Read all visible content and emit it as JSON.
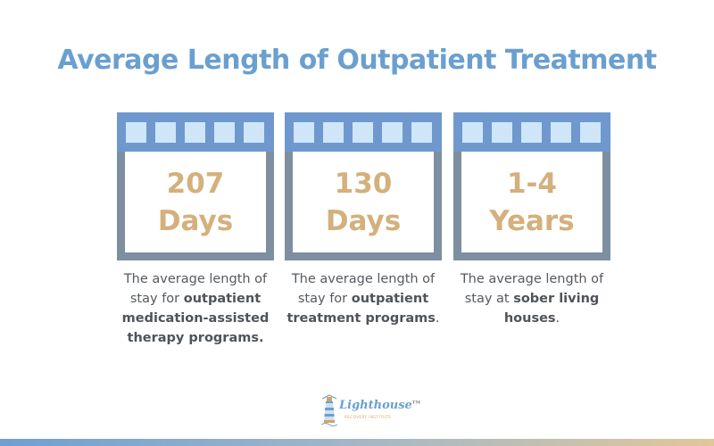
{
  "title": "Average Length of Outpatient Treatment",
  "cards": [
    {
      "line1": "207",
      "line2": "Days",
      "desc_plain_1": "The average length of stay for ",
      "desc_bold": "outpatient medication-assisted therapy programs.",
      "desc_plain_2": ""
    },
    {
      "line1": "130",
      "line2": "Days",
      "desc_plain_1": "The average length of stay for ",
      "desc_bold": "outpatient treatment programs",
      "desc_plain_2": "."
    },
    {
      "line1": "1-4",
      "line2": "Years",
      "desc_plain_1": "The average length of stay at ",
      "desc_bold": "sober living houses",
      "desc_plain_2": "."
    }
  ],
  "logo": {
    "name": "Lighthouse",
    "tm": "TM",
    "tagline": "RECOVERY INSTITUTE"
  },
  "colors": {
    "title": "#6a9fd0",
    "calendar_header": "#6f98cf",
    "calendar_frame": "#7d8fa0",
    "calendar_squares": "#cfe6f8",
    "big_numbers": "#d4b07c",
    "body_text": "#555a60"
  },
  "icons": [
    "calendar-icon",
    "lighthouse-icon"
  ]
}
